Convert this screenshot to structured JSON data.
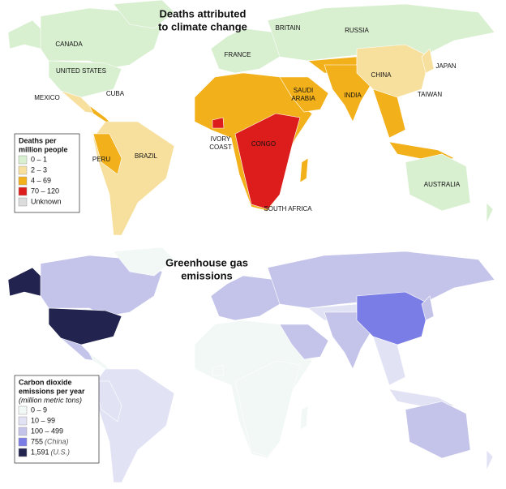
{
  "maps": [
    {
      "title_lines": [
        "Deaths attributed",
        "to climate change"
      ],
      "labels": [
        [
          "CANADA"
        ],
        [
          "UNITED STATES"
        ],
        [
          "MEXICO"
        ],
        [
          "CUBA"
        ],
        [
          "PERU"
        ],
        [
          "BRAZIL"
        ],
        [
          "BRITAIN"
        ],
        [
          "FRANCE"
        ],
        [
          "RUSSIA"
        ],
        [
          "SAUDI",
          "ARABIA"
        ],
        [
          "CHINA"
        ],
        [
          "INDIA"
        ],
        [
          "JAPAN"
        ],
        [
          "TAIWAN"
        ],
        [
          "IVORY",
          "COAST"
        ],
        [
          "CONGO"
        ],
        [
          "SOUTH AFRICA"
        ],
        [
          "AUSTRALIA"
        ]
      ],
      "legend": {
        "title_lines": [
          "Deaths per",
          "million people"
        ],
        "items": [
          {
            "label": "0 – 1",
            "color": "#d8efd0"
          },
          {
            "label": "2 – 3",
            "color": "#f7e09e"
          },
          {
            "label": "4 – 69",
            "color": "#f2b01a"
          },
          {
            "label": "70 – 120",
            "color": "#dd1c1c"
          },
          {
            "label": "Unknown",
            "color": "#dcdcdc"
          }
        ]
      }
    },
    {
      "title_lines": [
        "Greenhouse gas",
        "emissions"
      ],
      "legend": {
        "title_lines": [
          "Carbon dioxide",
          "emissions per year"
        ],
        "subtitle": "(million metric tons)",
        "items": [
          {
            "label": "0 – 9",
            "color": "#f2f8f6"
          },
          {
            "label": "10 – 99",
            "color": "#e2e2f5"
          },
          {
            "label": "100 – 499",
            "color": "#c4c4ea"
          },
          {
            "label": "755",
            "note": "(China)",
            "color": "#7b7de6"
          },
          {
            "label": "1,591",
            "note": "(U.S.)",
            "color": "#22234f"
          }
        ]
      }
    }
  ]
}
